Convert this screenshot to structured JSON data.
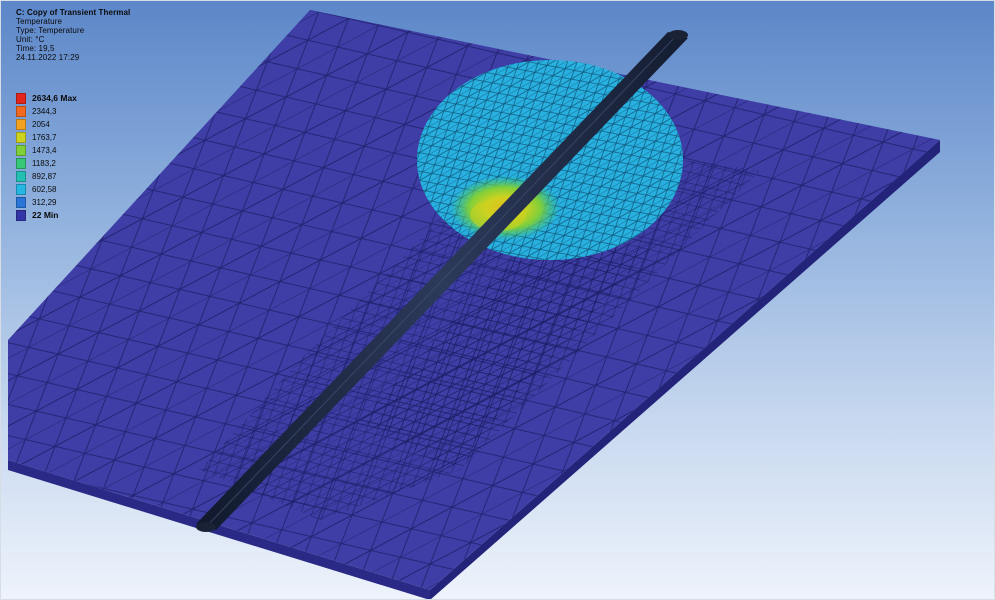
{
  "result_info": {
    "title": "C: Copy of Transient Thermal",
    "type_line": "Temperature",
    "type_detail": "Type: Temperature",
    "unit": "Unit: °C",
    "time": "Time: 19,5",
    "date": "24.11.2022 17:29"
  },
  "legend": {
    "entries": [
      {
        "label": "2634,6 Max",
        "color": "#e3261c",
        "bold": true
      },
      {
        "label": "2344,3",
        "color": "#f26a1f",
        "bold": false
      },
      {
        "label": "2054",
        "color": "#f4a321",
        "bold": false
      },
      {
        "label": "1763,7",
        "color": "#cdd21f",
        "bold": false
      },
      {
        "label": "1473,4",
        "color": "#7fcf3b",
        "bold": false
      },
      {
        "label": "1183,2",
        "color": "#36c777",
        "bold": false
      },
      {
        "label": "892,87",
        "color": "#22bfb2",
        "bold": false
      },
      {
        "label": "602,58",
        "color": "#27b7e3",
        "bold": false
      },
      {
        "label": "312,29",
        "color": "#2a76d8",
        "bold": false
      },
      {
        "label": "22 Min",
        "color": "#3434a9",
        "bold": true
      }
    ]
  },
  "colors": {
    "plate": "#3e3ea6",
    "mesh": "#20206a",
    "weld": "#1f2a44",
    "heat_zone": "#27b7e3",
    "hot_core": "#7fcf3b"
  }
}
